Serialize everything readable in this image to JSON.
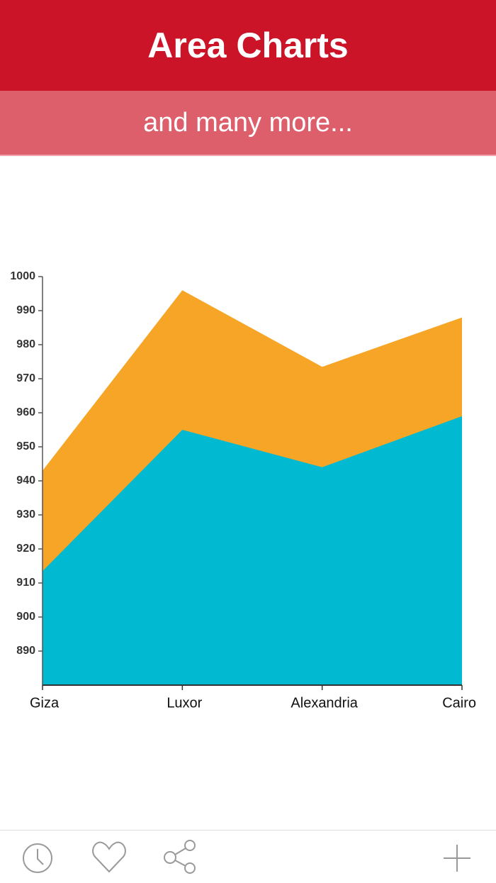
{
  "header": {
    "title": "Area Charts",
    "subtitle": "and many more..."
  },
  "chart_data": {
    "type": "area",
    "categories": [
      "Giza",
      "Luxor",
      "Alexandria",
      "Cairo"
    ],
    "series": [
      {
        "color": "#f6a526",
        "values": [
          943,
          996,
          973.5,
          988
        ]
      },
      {
        "color": "#02b9d2",
        "values": [
          913.5,
          955,
          944,
          959
        ]
      }
    ],
    "ylim": [
      880,
      1000
    ],
    "yticks": [
      890,
      900,
      910,
      920,
      930,
      940,
      950,
      960,
      970,
      980,
      990,
      1000
    ]
  }
}
